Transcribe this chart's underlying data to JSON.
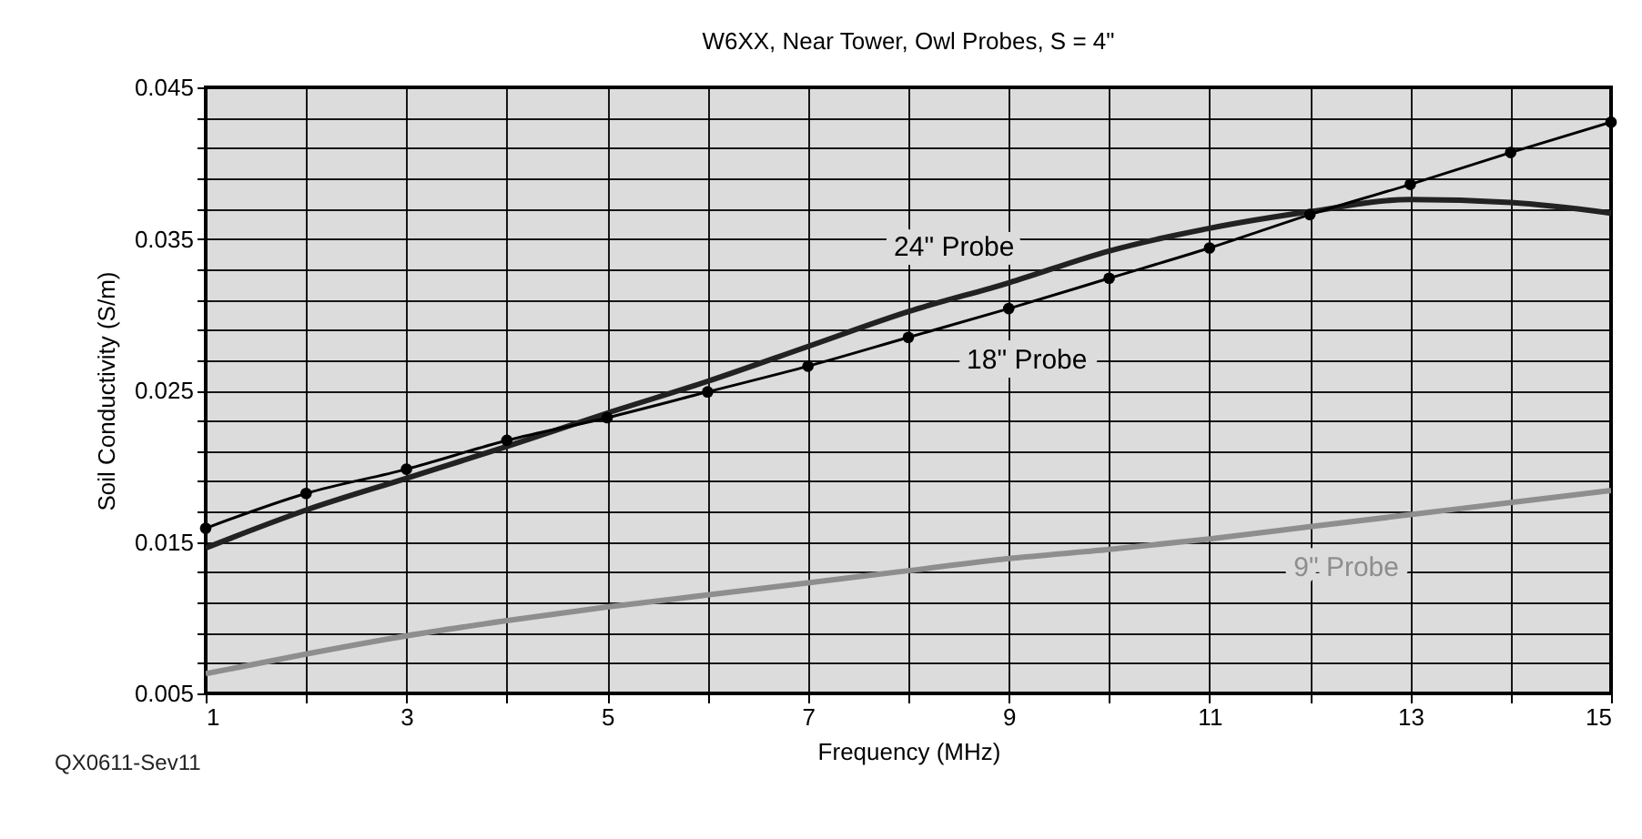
{
  "chart_data": {
    "type": "line",
    "title": "W6XX, Near Tower, Owl Probes, S = 4\"",
    "xlabel": "Frequency (MHz)",
    "ylabel": "Soil Conductivity (S/m)",
    "annotations": [
      "QX0611-Sev11"
    ],
    "x": [
      1,
      2,
      3,
      4,
      5,
      6,
      7,
      8,
      9,
      10,
      11,
      12,
      13,
      14,
      15
    ],
    "series": [
      {
        "name": "24\" Probe",
        "color": "#222222",
        "marker": "none",
        "values": [
          0.0146,
          0.0171,
          0.0192,
          0.0213,
          0.0235,
          0.0256,
          0.0279,
          0.0302,
          0.0321,
          0.0342,
          0.0357,
          0.0368,
          0.0376,
          0.0374,
          0.0367
        ]
      },
      {
        "name": "18\" Probe",
        "color": "#000000",
        "marker": "circle",
        "values": [
          0.0159,
          0.0182,
          0.0198,
          0.0217,
          0.0232,
          0.0249,
          0.0266,
          0.0285,
          0.0304,
          0.0324,
          0.0344,
          0.0366,
          0.0386,
          0.0407,
          0.0427
        ]
      },
      {
        "name": "9\" Probe",
        "color": "#8e8e8e",
        "marker": "none",
        "values": [
          0.0063,
          0.0076,
          0.0088,
          0.0098,
          0.0107,
          0.0115,
          0.0123,
          0.0131,
          0.0139,
          0.0145,
          0.0152,
          0.016,
          0.0168,
          0.0176,
          0.0184
        ]
      }
    ],
    "xlim": [
      1,
      15
    ],
    "xticks": [
      1,
      {
        "value": 2,
        "label": null
      },
      3,
      {
        "value": 4,
        "label": null
      },
      5,
      {
        "value": 6,
        "label": null
      },
      7,
      {
        "value": 8,
        "label": null
      },
      9,
      {
        "value": 10,
        "label": null
      },
      11,
      {
        "value": 12,
        "label": null
      },
      13,
      {
        "value": 14,
        "label": null
      },
      15
    ],
    "ylim": [
      0.005,
      0.045
    ],
    "yticks": [
      0.005,
      {
        "value": 0.007,
        "label": null
      },
      {
        "value": 0.009,
        "label": null
      },
      {
        "value": 0.011,
        "label": null
      },
      {
        "value": 0.013,
        "label": null
      },
      0.015,
      {
        "value": 0.017,
        "label": null
      },
      {
        "value": 0.019,
        "label": null
      },
      {
        "value": 0.021,
        "label": null
      },
      {
        "value": 0.023,
        "label": null
      },
      0.025,
      {
        "value": 0.027,
        "label": null
      },
      {
        "value": 0.029,
        "label": null
      },
      {
        "value": 0.031,
        "label": null
      },
      {
        "value": 0.033,
        "label": null
      },
      0.035,
      {
        "value": 0.037,
        "label": null
      },
      {
        "value": 0.039,
        "label": null
      },
      {
        "value": 0.041,
        "label": null
      },
      {
        "value": 0.043,
        "label": null
      },
      0.045
    ],
    "grid": true,
    "line_style": "solid"
  }
}
